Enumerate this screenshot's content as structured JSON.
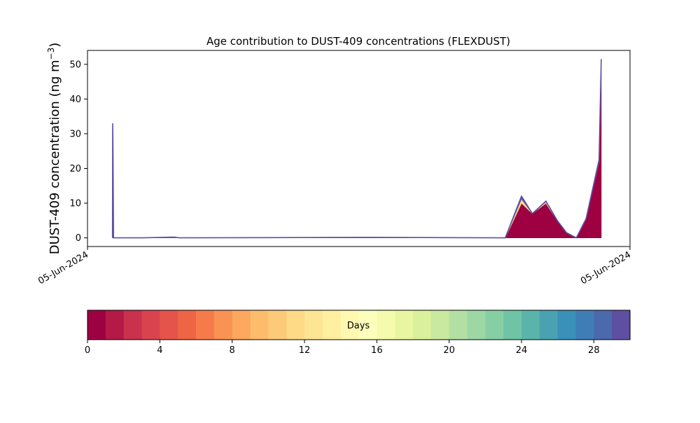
{
  "chart_data": {
    "type": "area",
    "title": "Age contribution to DUST-409 concentrations (FLEXDUST)",
    "ylabel": "DUST-409 concentration (ng m",
    "ylabel_sup": "−3",
    "ylabel_close": ")",
    "ylim": [
      -2.5,
      54
    ],
    "yticks": [
      0,
      10,
      20,
      30,
      40,
      50
    ],
    "xlim": [
      0,
      1
    ],
    "xtick_labels": [
      "05-Jun-2024",
      "05-Jun-2024"
    ],
    "x": [
      0.046,
      0.0465,
      0.047,
      0.048,
      0.1,
      0.16,
      0.17,
      0.53,
      0.76,
      0.77,
      0.8,
      0.82,
      0.845,
      0.866,
      0.883,
      0.901,
      0.919,
      0.943,
      0.947
    ],
    "series": [
      {
        "values": [
          0,
          26,
          0,
          0,
          0,
          0,
          0,
          0,
          0,
          0,
          10,
          7,
          10,
          5,
          1.5,
          0,
          5.5,
          22,
          49
        ],
        "color": "#9e0142"
      },
      {
        "values": [
          0,
          1,
          0,
          0,
          0,
          0,
          0,
          0,
          0,
          0,
          1.2,
          0,
          0.4,
          0,
          0,
          0,
          0,
          0,
          0
        ],
        "color": "#fee08b"
      },
      {
        "values": [
          0,
          6,
          26,
          0,
          0,
          0.2,
          0,
          0.15,
          0,
          0,
          0.8,
          0,
          0.2,
          0,
          0,
          0,
          0,
          0.5,
          2.5
        ],
        "color": "#5e4fa2"
      }
    ],
    "colorbar": {
      "label": "Days",
      "min": 0,
      "max": 30,
      "ticks": [
        0,
        4,
        8,
        12,
        16,
        20,
        24,
        28
      ],
      "colors": [
        "#9e0142",
        "#b41947",
        "#c9314c",
        "#d9434e",
        "#e5544a",
        "#ee6545",
        "#f67b4a",
        "#fa9254",
        "#fca85f",
        "#fdbb6c",
        "#fdca79",
        "#fed986",
        "#fee593",
        "#ffef9e",
        "#fff8b0",
        "#fcfebb",
        "#f5fbad",
        "#e9f6a1",
        "#daf09a",
        "#c8e99e",
        "#b3e0a2",
        "#9cd7a4",
        "#86cfa5",
        "#6fc4a5",
        "#5bb4a9",
        "#4aa2b1",
        "#3990b9",
        "#3f7db6",
        "#4b69ad",
        "#5e4fa2"
      ]
    }
  }
}
